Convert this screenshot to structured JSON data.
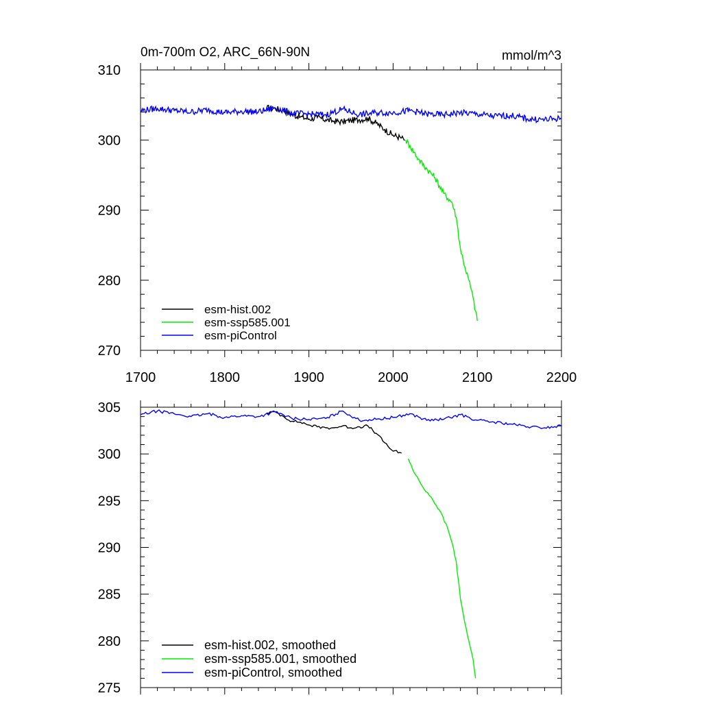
{
  "chart_data": [
    {
      "type": "line",
      "title": "0m-700m O2, ARC_66N-90N",
      "units": "mmol/m^3",
      "xlabel": "",
      "ylabel": "",
      "xlim": [
        1700,
        2200
      ],
      "ylim": [
        270,
        310
      ],
      "xticks": [
        1700,
        1800,
        1900,
        2000,
        2100,
        2200
      ],
      "yticks": [
        270,
        280,
        290,
        300,
        310
      ],
      "grid": false,
      "legend_position": "bottom-left",
      "smoothed": false,
      "series": [
        {
          "name": "esm-hist.002",
          "color": "#000000",
          "x": [
            1850,
            1860,
            1870,
            1880,
            1890,
            1900,
            1910,
            1920,
            1930,
            1940,
            1950,
            1960,
            1970,
            1980,
            1990,
            2000,
            2010,
            2014
          ],
          "y": [
            304.6,
            304.5,
            304.2,
            303.6,
            303.3,
            303.0,
            303.2,
            302.9,
            302.7,
            302.6,
            302.8,
            302.9,
            303.1,
            302.4,
            301.5,
            300.7,
            300.3,
            300.0
          ]
        },
        {
          "name": "esm-ssp585.001",
          "color": "#00ee00",
          "x": [
            2015,
            2020,
            2030,
            2040,
            2050,
            2060,
            2070,
            2075,
            2080,
            2085,
            2090,
            2095,
            2100
          ],
          "y": [
            300.0,
            299.2,
            297.3,
            295.9,
            294.6,
            292.4,
            291.1,
            289.0,
            284.5,
            282.0,
            280.0,
            277.5,
            274.2
          ]
        },
        {
          "name": "esm-piControl",
          "color": "#0000ff",
          "x": [
            1700,
            1720,
            1740,
            1760,
            1780,
            1800,
            1820,
            1840,
            1860,
            1880,
            1900,
            1920,
            1940,
            1960,
            1980,
            2000,
            2020,
            2040,
            2060,
            2080,
            2100,
            2120,
            2140,
            2160,
            2180,
            2200
          ],
          "y": [
            304.2,
            304.5,
            304.2,
            304.0,
            304.3,
            303.9,
            304.1,
            304.0,
            304.6,
            303.8,
            303.7,
            303.6,
            304.4,
            303.6,
            303.9,
            303.9,
            304.2,
            303.7,
            303.6,
            303.9,
            303.7,
            303.4,
            303.5,
            303.0,
            302.9,
            303.1
          ]
        }
      ]
    },
    {
      "type": "line",
      "title": "",
      "units": "",
      "xlabel": "",
      "ylabel": "",
      "xlim": [
        1700,
        2200
      ],
      "ylim": [
        275,
        305
      ],
      "xticks": [
        1700,
        1800,
        1900,
        2000,
        2100,
        2200
      ],
      "yticks": [
        275,
        280,
        285,
        290,
        295,
        300,
        305
      ],
      "grid": false,
      "legend_position": "bottom-left",
      "smoothed": true,
      "series": [
        {
          "name": "esm-hist.002, smoothed",
          "color": "#000000",
          "x": [
            1850,
            1860,
            1870,
            1880,
            1890,
            1900,
            1910,
            1920,
            1930,
            1940,
            1950,
            1960,
            1970,
            1980,
            1990,
            2000,
            2010
          ],
          "y": [
            304.4,
            304.5,
            304.0,
            303.5,
            303.4,
            303.1,
            302.9,
            302.8,
            302.8,
            303.0,
            302.8,
            302.9,
            303.0,
            302.2,
            301.2,
            300.3,
            300.1
          ]
        },
        {
          "name": "esm-ssp585.001, smoothed",
          "color": "#00ee00",
          "x": [
            2018,
            2025,
            2035,
            2045,
            2055,
            2065,
            2070,
            2075,
            2080,
            2085,
            2090,
            2095,
            2098
          ],
          "y": [
            299.5,
            298.0,
            296.5,
            295.4,
            294.0,
            292.0,
            290.5,
            288.5,
            284.5,
            282.0,
            280.0,
            278.0,
            276.0
          ]
        },
        {
          "name": "esm-piControl, smoothed",
          "color": "#0000ff",
          "x": [
            1700,
            1720,
            1740,
            1760,
            1780,
            1800,
            1820,
            1840,
            1860,
            1880,
            1900,
            1920,
            1940,
            1960,
            1980,
            2000,
            2020,
            2040,
            2060,
            2080,
            2100,
            2120,
            2140,
            2160,
            2180,
            2200
          ],
          "y": [
            304.2,
            304.6,
            304.3,
            304.0,
            304.3,
            303.9,
            304.1,
            304.0,
            304.5,
            303.8,
            303.7,
            303.8,
            304.6,
            303.6,
            303.7,
            303.9,
            304.3,
            303.6,
            303.7,
            304.2,
            303.6,
            303.4,
            303.2,
            302.9,
            302.8,
            303.0
          ]
        }
      ]
    }
  ]
}
